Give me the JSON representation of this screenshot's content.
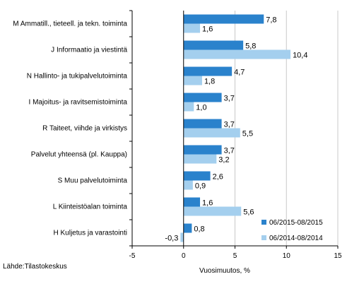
{
  "chart_data": {
    "type": "bar",
    "orientation": "horizontal",
    "categories": [
      "M Ammatill., tieteell. ja tekn. toiminta",
      "J Informaatio ja viestintä",
      "N Hallinto- ja tukipalvelutoiminta",
      "I Majoitus- ja ravitsemistoiminta",
      "R Taiteet, viihde ja virkistys",
      "Palvelut yhteensä (pl. Kauppa)",
      "S Muu palvelutoiminta",
      "L Kiinteistöalan toiminta",
      "H Kuljetus ja varastointi"
    ],
    "series": [
      {
        "name": "06/2015-08/2015",
        "color": "#2a82cc",
        "values": [
          7.8,
          5.8,
          4.7,
          3.7,
          3.7,
          3.7,
          2.6,
          1.6,
          0.8
        ],
        "labels": [
          "7,8",
          "5,8",
          "4,7",
          "3,7",
          "3,7",
          "3,7",
          "2,6",
          "1,6",
          "0,8"
        ]
      },
      {
        "name": "06/2014-08/2014",
        "color": "#a4cfee",
        "values": [
          1.6,
          10.4,
          1.8,
          1.0,
          5.5,
          3.2,
          0.9,
          5.6,
          -0.3
        ],
        "labels": [
          "1,6",
          "10,4",
          "1,8",
          "1,0",
          "5,5",
          "3,2",
          "0,9",
          "5,6",
          "-0,3"
        ]
      }
    ],
    "xlabel": "Vuosimuutos, %",
    "xlim": [
      -5,
      15
    ],
    "xticks": [
      -5,
      0,
      5,
      10,
      15
    ],
    "xtick_labels": [
      "-5",
      "0",
      "5",
      "10",
      "15"
    ],
    "grid": true,
    "legend_position": "bottom-right"
  },
  "source": "Lähde:Tilastokeskus"
}
